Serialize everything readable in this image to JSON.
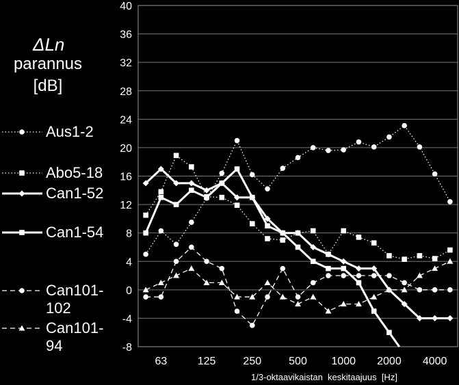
{
  "chart_data": {
    "type": "line",
    "ylabel_symbol": "ΔLn",
    "ylabel_lines": [
      "parannus",
      "[dB]"
    ],
    "xlabel": "1/3-oktaavikaistan  keskitaajuus  [Hz]",
    "ylim": [
      -8,
      40
    ],
    "yticks": [
      -8,
      -4,
      0,
      4,
      8,
      12,
      16,
      20,
      24,
      28,
      32,
      36,
      40
    ],
    "xticks": [
      {
        "label": "63",
        "freq": 63
      },
      {
        "label": "125",
        "freq": 125
      },
      {
        "label": "250",
        "freq": 250
      },
      {
        "label": "500",
        "freq": 500
      },
      {
        "label": "1000",
        "freq": 1000
      },
      {
        "label": "2000",
        "freq": 2000
      },
      {
        "label": "4000",
        "freq": 4000
      }
    ],
    "x": [
      50,
      63,
      80,
      100,
      125,
      160,
      200,
      250,
      315,
      400,
      500,
      630,
      800,
      1000,
      1250,
      1600,
      2000,
      2500,
      3150,
      4000,
      5000
    ],
    "series": [
      {
        "name": "Aus1-2",
        "style": "dotted",
        "marker": "circle",
        "values": [
          5,
          8.3,
          6.4,
          9.5,
          12.9,
          16.4,
          21,
          16.2,
          14.2,
          17.1,
          18.6,
          20,
          19.6,
          19.7,
          20.8,
          20.1,
          21.5,
          23.1,
          20.1,
          16.3,
          12.4
        ]
      },
      {
        "name": "Abo5-18",
        "style": "dotted",
        "marker": "square",
        "values": [
          10.5,
          13.8,
          18.9,
          17.3,
          13.1,
          13,
          11.9,
          9.3,
          7.2,
          7,
          8,
          8.3,
          5,
          8.3,
          7.4,
          6.6,
          4.8,
          4.3,
          4.8,
          4.4,
          5.6
        ]
      },
      {
        "name": "Can1-52",
        "style": "solid",
        "marker": "diamond",
        "values": [
          15,
          17,
          15,
          15,
          14,
          15,
          13,
          13,
          10,
          8,
          8,
          6,
          5,
          4,
          3,
          3,
          0,
          -2,
          -4,
          -4,
          -4
        ]
      },
      {
        "name": "Can1-54",
        "style": "solid",
        "marker": "square",
        "values": [
          8,
          13,
          12,
          14,
          13,
          15,
          17,
          13,
          9,
          8,
          6,
          4,
          3,
          3,
          1,
          -3,
          -6,
          -9,
          null,
          null,
          null
        ]
      },
      {
        "name": "Can101-102",
        "style": "dashed",
        "marker": "circle",
        "values": [
          -1,
          -1,
          4,
          6,
          4,
          3,
          -3,
          -5,
          -1,
          3,
          -1,
          1,
          2,
          2,
          2,
          2,
          2,
          1,
          0,
          0,
          0
        ]
      },
      {
        "name": "Can101-94",
        "style": "dashed",
        "marker": "triangle",
        "values": [
          0,
          1,
          2,
          3,
          1,
          1,
          -1,
          -1,
          1,
          -1,
          -2,
          -1,
          -3,
          -2,
          -2,
          -1,
          0,
          0,
          2,
          3,
          4
        ]
      }
    ],
    "grid": "horizontal",
    "legend_position": "left"
  }
}
